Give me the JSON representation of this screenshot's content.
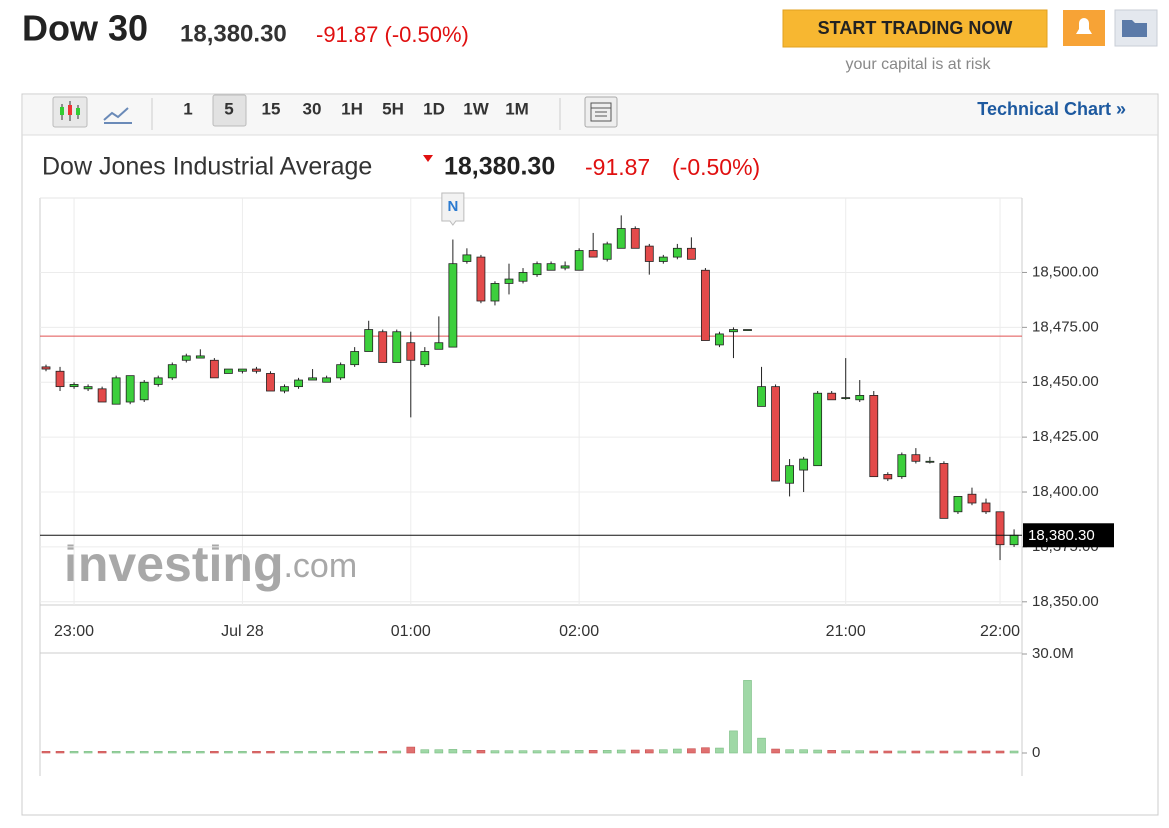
{
  "header": {
    "title": "Dow 30",
    "price": "18,380.30",
    "change": "-91.87 (-0.50%)",
    "cta": "START TRADING NOW",
    "risk_note": "your capital is at risk"
  },
  "toolbar": {
    "timeframes": [
      "1",
      "5",
      "15",
      "30",
      "1H",
      "5H",
      "1D",
      "1W",
      "1M"
    ],
    "link": "Technical Chart »"
  },
  "chart_data": {
    "type": "candlestick",
    "title": "Dow Jones Industrial Average",
    "price": "18,380.30",
    "change": "-91.87",
    "change_pct": "(-0.50%)",
    "categories": [
      null,
      null,
      "23:00",
      null,
      null,
      null,
      null,
      null,
      null,
      null,
      null,
      null,
      null,
      null,
      "Jul 28",
      null,
      null,
      null,
      null,
      null,
      null,
      null,
      null,
      null,
      null,
      null,
      "01:00",
      null,
      null,
      null,
      null,
      null,
      null,
      null,
      null,
      null,
      null,
      null,
      "02:00",
      null,
      null,
      null,
      null,
      null,
      null,
      null,
      null,
      null,
      null,
      null,
      null,
      null,
      null,
      null,
      null,
      null,
      null,
      "21:00",
      null,
      null,
      null,
      null,
      null,
      null,
      null,
      null,
      null,
      null,
      "22:00",
      null
    ],
    "open": [
      18457,
      18455,
      18448,
      18447,
      18447,
      18440,
      18441,
      18442,
      18449,
      18452,
      18460,
      18461,
      18460,
      18454,
      18455,
      18456,
      18454,
      18446,
      18448,
      18451,
      18450,
      18452,
      18458,
      18464,
      18473,
      18459,
      18468,
      18458,
      18465,
      18466,
      18505,
      18507,
      18487,
      18495,
      18496,
      18499,
      18501,
      18502,
      18501,
      18510,
      18506,
      18511,
      18520,
      18512,
      18505,
      18507,
      18511,
      18501,
      18467,
      18473,
      18474,
      18439,
      18448,
      18404,
      18410,
      18412,
      18445,
      18443,
      18442,
      18444,
      18408,
      18407,
      18417,
      18414,
      18413,
      18391,
      18399,
      18395,
      18391,
      18376
    ],
    "high": [
      18458,
      18457,
      18450,
      18449,
      18448,
      18453,
      18453,
      18451,
      18453,
      18459,
      18463,
      18465,
      18461,
      18456,
      18456,
      18457,
      18455,
      18449,
      18452,
      18456,
      18453,
      18459,
      18466,
      18478,
      18474,
      18474,
      18473,
      18466,
      18480,
      18515,
      18511,
      18508,
      18496,
      18504,
      18502,
      18505,
      18505,
      18505,
      18511,
      18518,
      18514,
      18526,
      18521,
      18513,
      18508,
      18513,
      18516,
      18502,
      18473,
      18475,
      18474,
      18457,
      18449,
      18415,
      18416,
      18446,
      18446,
      18461,
      18451,
      18446,
      18409,
      18418,
      18420,
      18416,
      18414,
      18398,
      18402,
      18397,
      18391,
      18383
    ],
    "low": [
      18455,
      18446,
      18447,
      18446,
      18441,
      18440,
      18440,
      18441,
      18448,
      18451,
      18459,
      18461,
      18452,
      18454,
      18454,
      18454,
      18446,
      18445,
      18447,
      18451,
      18450,
      18451,
      18457,
      18464,
      18459,
      18459,
      18434,
      18457,
      18465,
      18466,
      18504,
      18486,
      18485,
      18490,
      18495,
      18498,
      18501,
      18501,
      18501,
      18507,
      18505,
      18511,
      18511,
      18499,
      18504,
      18506,
      18506,
      18469,
      18466,
      18461,
      18474,
      18439,
      18405,
      18398,
      18400,
      18412,
      18442,
      18442,
      18441,
      18407,
      18405,
      18406,
      18413,
      18413,
      18388,
      18390,
      18394,
      18390,
      18369,
      18375
    ],
    "close": [
      18456,
      18448,
      18449,
      18448,
      18441,
      18452,
      18453,
      18450,
      18452,
      18458,
      18462,
      18462,
      18452,
      18456,
      18456,
      18455,
      18446,
      18448,
      18451,
      18452,
      18452,
      18458,
      18464,
      18474,
      18459,
      18473,
      18460,
      18464,
      18468,
      18504,
      18508,
      18487,
      18495,
      18497,
      18500,
      18504,
      18504,
      18503,
      18510,
      18507,
      18513,
      18520,
      18511,
      18505,
      18507,
      18511,
      18506,
      18469,
      18472,
      18474,
      18474,
      18448,
      18405,
      18412,
      18415,
      18445,
      18442,
      18443,
      18444,
      18407,
      18406,
      18417,
      18414,
      18414,
      18388,
      18398,
      18395,
      18391,
      18376,
      18380.3
    ],
    "up_color": "#3ccf3c",
    "down_color": "#e34a4a",
    "ylim": [
      18349,
      18533
    ],
    "yticks": [
      {
        "value": 18350,
        "label": "18,350.00"
      },
      {
        "value": 18375,
        "label": "18,375.00"
      },
      {
        "value": 18400,
        "label": "18,400.00"
      },
      {
        "value": 18425,
        "label": "18,425.00"
      },
      {
        "value": 18450,
        "label": "18,450.00"
      },
      {
        "value": 18475,
        "label": "18,475.00"
      },
      {
        "value": 18500,
        "label": "18,500.00"
      }
    ],
    "reference_line": 18471,
    "last_price": {
      "value": 18380.3,
      "label": "18,380.30"
    },
    "annotations": [
      "N"
    ],
    "watermark": [
      "investing",
      ".com"
    ],
    "volume": {
      "values": [
        500000,
        500000,
        500000,
        500000,
        500000,
        500000,
        500000,
        500000,
        500000,
        500000,
        500000,
        500000,
        500000,
        500000,
        500000,
        500000,
        500000,
        500000,
        500000,
        500000,
        500000,
        500000,
        500000,
        500000,
        500000,
        600000,
        1800000,
        1000000,
        1000000,
        1100000,
        800000,
        800000,
        700000,
        700000,
        700000,
        700000,
        700000,
        700000,
        800000,
        800000,
        800000,
        900000,
        900000,
        1000000,
        1000000,
        1200000,
        1300000,
        1600000,
        1500000,
        6700000,
        22000000,
        4500000,
        1200000,
        1000000,
        1000000,
        900000,
        800000,
        700000,
        700000,
        600000,
        600000,
        600000,
        600000,
        600000,
        600000,
        600000,
        600000,
        600000,
        600000,
        600000
      ],
      "ylim": [
        0,
        30000000
      ],
      "yticks": [
        {
          "value": 30000000,
          "label": "30.0M"
        },
        0
      ]
    }
  }
}
